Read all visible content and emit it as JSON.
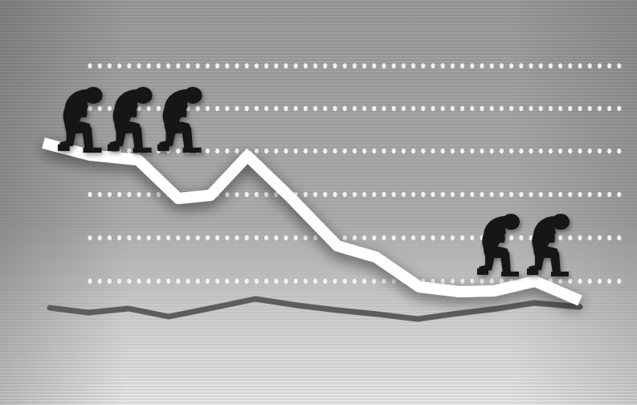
{
  "illustration": {
    "subject": "declining-market-line-with-dejected-figures",
    "colors": {
      "background_light": "#e9e9e9",
      "background_dark": "#8f8f8f",
      "stripe": "#b4b4b4",
      "dots": "#f2f2f2",
      "main_line": "#ffffff",
      "lower_line": "#5d5d5d",
      "figures": "#161616"
    },
    "figures_on_left": 3,
    "figures_on_right": 2
  }
}
